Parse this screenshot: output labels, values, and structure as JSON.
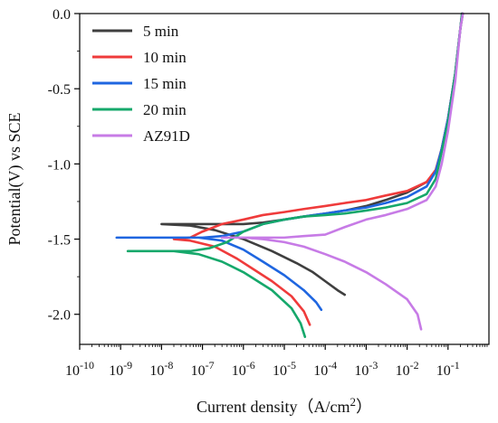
{
  "chart_data": {
    "type": "line",
    "xlabel": "Current density（A/cm",
    "xlabel_sup": "2",
    "xlabel_close": "）",
    "ylabel": "Potential(V) vs SCE",
    "x_scale": "log",
    "xlim": [
      1e-10,
      1
    ],
    "ylim": [
      -2.2,
      0.0
    ],
    "x_ticks": [
      {
        "base": "10",
        "exp": "-10",
        "value": 1e-10
      },
      {
        "base": "10",
        "exp": "-9",
        "value": 1e-09
      },
      {
        "base": "10",
        "exp": "-8",
        "value": 1e-08
      },
      {
        "base": "10",
        "exp": "-7",
        "value": 1e-07
      },
      {
        "base": "10",
        "exp": "-6",
        "value": 1e-06
      },
      {
        "base": "10",
        "exp": "-5",
        "value": 1e-05
      },
      {
        "base": "10",
        "exp": "-4",
        "value": 0.0001
      },
      {
        "base": "10",
        "exp": "-3",
        "value": 0.001
      },
      {
        "base": "10",
        "exp": "-2",
        "value": 0.01
      },
      {
        "base": "10",
        "exp": "-1",
        "value": 0.1
      }
    ],
    "y_ticks": [
      {
        "label": "0.0",
        "value": 0.0
      },
      {
        "label": "-0.5",
        "value": -0.5
      },
      {
        "label": "-1.0",
        "value": -1.0
      },
      {
        "label": "-1.5",
        "value": -1.5
      },
      {
        "label": "-2.0",
        "value": -2.0
      }
    ],
    "grid": false,
    "legend_position": "top-left",
    "series": [
      {
        "name": "5 min",
        "color": "#3f3f3f",
        "points": [
          [
            0.0003,
            -1.87
          ],
          [
            0.0002,
            -1.84
          ],
          [
            0.0001,
            -1.78
          ],
          [
            5e-05,
            -1.72
          ],
          [
            2e-05,
            -1.66
          ],
          [
            5e-06,
            -1.58
          ],
          [
            1e-06,
            -1.5
          ],
          [
            2e-07,
            -1.44
          ],
          [
            5e-08,
            -1.41
          ],
          [
            1e-08,
            -1.4
          ],
          [
            3e-08,
            -1.4
          ],
          [
            1e-07,
            -1.4
          ],
          [
            3e-07,
            -1.4
          ],
          [
            1e-06,
            -1.4
          ],
          [
            3e-06,
            -1.39
          ],
          [
            1e-05,
            -1.37
          ],
          [
            3e-05,
            -1.35
          ],
          [
            0.0001,
            -1.33
          ],
          [
            0.0003,
            -1.31
          ],
          [
            0.001,
            -1.28
          ],
          [
            0.003,
            -1.24
          ],
          [
            0.01,
            -1.19
          ],
          [
            0.03,
            -1.12
          ],
          [
            0.05,
            -1.05
          ],
          [
            0.07,
            -0.9
          ],
          [
            0.1,
            -0.7
          ],
          [
            0.15,
            -0.4
          ],
          [
            0.2,
            -0.1
          ],
          [
            0.23,
            0.0
          ]
        ]
      },
      {
        "name": "10 min",
        "color": "#ef3b3b",
        "points": [
          [
            4.2e-05,
            -2.07
          ],
          [
            3e-05,
            -1.98
          ],
          [
            1.5e-05,
            -1.88
          ],
          [
            5e-06,
            -1.78
          ],
          [
            2e-06,
            -1.71
          ],
          [
            7e-07,
            -1.63
          ],
          [
            2e-07,
            -1.55
          ],
          [
            5e-08,
            -1.51
          ],
          [
            2e-08,
            -1.5
          ],
          [
            5e-08,
            -1.49
          ],
          [
            1e-07,
            -1.45
          ],
          [
            3e-07,
            -1.4
          ],
          [
            1e-06,
            -1.37
          ],
          [
            3e-06,
            -1.34
          ],
          [
            1e-05,
            -1.32
          ],
          [
            3e-05,
            -1.3
          ],
          [
            0.0001,
            -1.28
          ],
          [
            0.0003,
            -1.26
          ],
          [
            0.001,
            -1.24
          ],
          [
            0.003,
            -1.21
          ],
          [
            0.01,
            -1.18
          ],
          [
            0.03,
            -1.12
          ],
          [
            0.05,
            -1.04
          ],
          [
            0.07,
            -0.9
          ],
          [
            0.1,
            -0.7
          ],
          [
            0.15,
            -0.4
          ],
          [
            0.2,
            -0.1
          ],
          [
            0.22,
            0.0
          ]
        ]
      },
      {
        "name": "15 min",
        "color": "#1f66e0",
        "points": [
          [
            8e-05,
            -1.97
          ],
          [
            6e-05,
            -1.92
          ],
          [
            3e-05,
            -1.84
          ],
          [
            1e-05,
            -1.74
          ],
          [
            3e-06,
            -1.65
          ],
          [
            1e-06,
            -1.57
          ],
          [
            3e-07,
            -1.51
          ],
          [
            8e-08,
            -1.49
          ],
          [
            1e-08,
            -1.49
          ],
          [
            1e-09,
            -1.49
          ],
          [
            8e-10,
            -1.49
          ],
          [
            1e-08,
            -1.49
          ],
          [
            1e-07,
            -1.49
          ],
          [
            3e-07,
            -1.48
          ],
          [
            1e-06,
            -1.45
          ],
          [
            3e-06,
            -1.4
          ],
          [
            1e-05,
            -1.37
          ],
          [
            3e-05,
            -1.35
          ],
          [
            0.0001,
            -1.33
          ],
          [
            0.0003,
            -1.31
          ],
          [
            0.001,
            -1.29
          ],
          [
            0.003,
            -1.26
          ],
          [
            0.01,
            -1.22
          ],
          [
            0.03,
            -1.15
          ],
          [
            0.05,
            -1.05
          ],
          [
            0.07,
            -0.9
          ],
          [
            0.1,
            -0.7
          ],
          [
            0.15,
            -0.4
          ],
          [
            0.2,
            -0.1
          ],
          [
            0.22,
            0.0
          ]
        ]
      },
      {
        "name": "20 min",
        "color": "#16a86b",
        "points": [
          [
            3.2e-05,
            -2.15
          ],
          [
            2.5e-05,
            -2.06
          ],
          [
            1.5e-05,
            -1.96
          ],
          [
            5e-06,
            -1.84
          ],
          [
            1e-06,
            -1.72
          ],
          [
            3e-07,
            -1.65
          ],
          [
            8e-08,
            -1.6
          ],
          [
            2e-08,
            -1.58
          ],
          [
            1.5e-09,
            -1.58
          ],
          [
            1e-08,
            -1.58
          ],
          [
            5e-08,
            -1.58
          ],
          [
            1.5e-07,
            -1.56
          ],
          [
            4e-07,
            -1.52
          ],
          [
            1e-06,
            -1.45
          ],
          [
            3e-06,
            -1.4
          ],
          [
            1e-05,
            -1.37
          ],
          [
            3e-05,
            -1.35
          ],
          [
            0.0001,
            -1.34
          ],
          [
            0.0003,
            -1.33
          ],
          [
            0.001,
            -1.31
          ],
          [
            0.003,
            -1.29
          ],
          [
            0.01,
            -1.26
          ],
          [
            0.03,
            -1.2
          ],
          [
            0.05,
            -1.1
          ],
          [
            0.07,
            -0.92
          ],
          [
            0.1,
            -0.72
          ],
          [
            0.15,
            -0.4
          ],
          [
            0.2,
            -0.1
          ],
          [
            0.22,
            0.0
          ]
        ]
      },
      {
        "name": "AZ91D",
        "color": "#c77be6",
        "points": [
          [
            0.022,
            -2.1
          ],
          [
            0.018,
            -2.0
          ],
          [
            0.01,
            -1.9
          ],
          [
            0.003,
            -1.8
          ],
          [
            0.001,
            -1.72
          ],
          [
            0.0003,
            -1.65
          ],
          [
            0.0001,
            -1.6
          ],
          [
            3e-05,
            -1.55
          ],
          [
            1e-05,
            -1.52
          ],
          [
            3e-06,
            -1.5
          ],
          [
            1e-06,
            -1.49
          ],
          [
            3e-07,
            -1.49
          ],
          [
            1e-06,
            -1.49
          ],
          [
            3e-06,
            -1.49
          ],
          [
            1e-05,
            -1.49
          ],
          [
            3e-05,
            -1.48
          ],
          [
            0.0001,
            -1.47
          ],
          [
            0.0003,
            -1.42
          ],
          [
            0.001,
            -1.37
          ],
          [
            0.003,
            -1.34
          ],
          [
            0.01,
            -1.3
          ],
          [
            0.03,
            -1.24
          ],
          [
            0.05,
            -1.15
          ],
          [
            0.07,
            -1.0
          ],
          [
            0.1,
            -0.78
          ],
          [
            0.15,
            -0.45
          ],
          [
            0.2,
            -0.1
          ],
          [
            0.23,
            0.0
          ]
        ]
      }
    ]
  }
}
